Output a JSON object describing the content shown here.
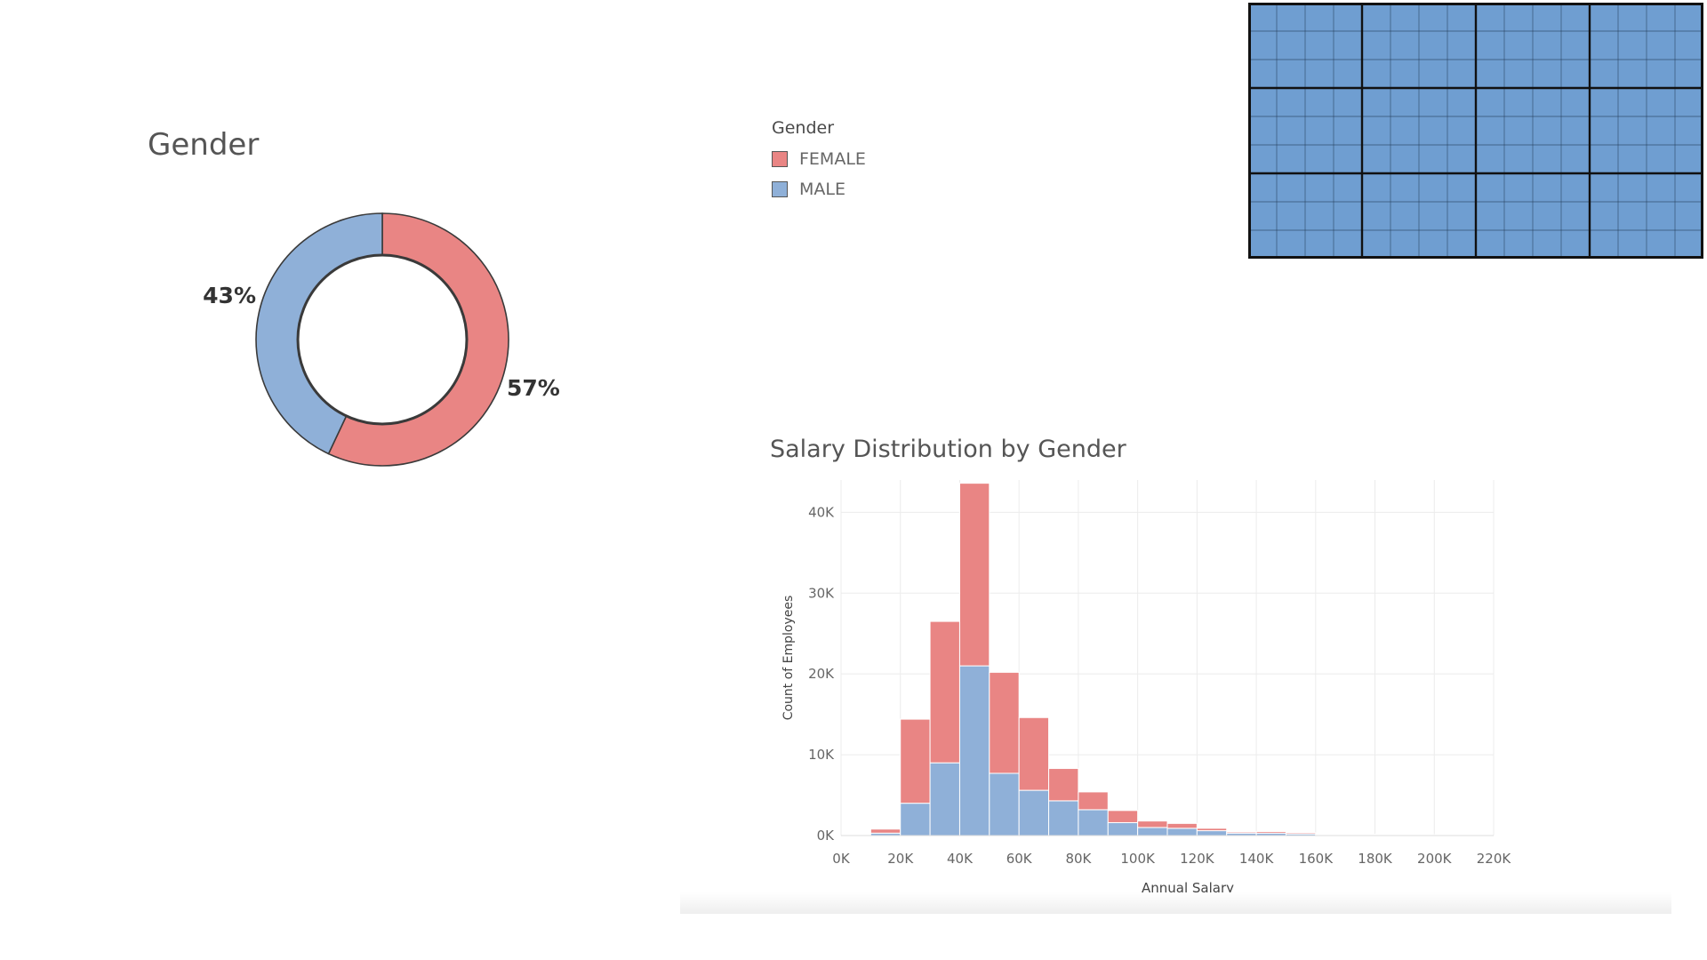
{
  "colors": {
    "female": "#e98584",
    "male": "#8fb0d8",
    "outline": "#3a3a3a",
    "grid_fill": "#6f9ed1",
    "grid_line": "#1f3550",
    "bar_edge": "#ffffff",
    "gridline": "#ececec",
    "text": "#555555"
  },
  "chart_data": [
    {
      "type": "pie",
      "variant": "donut",
      "title": "Gender",
      "slices": [
        {
          "label": "FEMALE",
          "value": 57,
          "display": "57%"
        },
        {
          "label": "MALE",
          "value": 43,
          "display": "43%"
        }
      ],
      "start": "top",
      "direction": "clockwise"
    },
    {
      "type": "bar",
      "variant": "stacked-histogram",
      "title": "Salary Distribution by Gender",
      "xlabel": "Annual Salary",
      "ylabel": "Count of Employees",
      "ylim": [
        0,
        44000
      ],
      "yticks": [
        0,
        10000,
        20000,
        30000,
        40000
      ],
      "ytick_labels": [
        "0K",
        "10K",
        "20K",
        "30K",
        "40K"
      ],
      "xlim": [
        0,
        220000
      ],
      "xticks": [
        0,
        20000,
        40000,
        60000,
        80000,
        100000,
        120000,
        140000,
        160000,
        180000,
        200000,
        220000
      ],
      "xtick_labels": [
        "0K",
        "20K",
        "40K",
        "60K",
        "80K",
        "100K",
        "120K",
        "140K",
        "160K",
        "180K",
        "200K",
        "220K"
      ],
      "bin_width": 10000,
      "x": [
        10000,
        20000,
        30000,
        40000,
        50000,
        60000,
        70000,
        80000,
        90000,
        100000,
        110000,
        120000,
        130000,
        140000,
        150000,
        160000,
        170000,
        180000,
        190000,
        200000
      ],
      "series": [
        {
          "name": "MALE",
          "values": [
            300,
            4000,
            9000,
            21000,
            7700,
            5600,
            4300,
            3200,
            1600,
            1000,
            900,
            600,
            300,
            300,
            200,
            100,
            100,
            100,
            50,
            50
          ]
        },
        {
          "name": "FEMALE",
          "values": [
            500,
            10400,
            17500,
            22600,
            12500,
            9000,
            4000,
            2200,
            1500,
            800,
            600,
            300,
            150,
            200,
            150,
            50,
            50,
            50,
            50,
            50
          ]
        }
      ],
      "grid": true,
      "legend": {
        "title": "Gender",
        "placement": "top-left",
        "items": [
          {
            "label": "FEMALE",
            "series": "FEMALE"
          },
          {
            "label": "MALE",
            "series": "MALE"
          }
        ]
      }
    }
  ]
}
